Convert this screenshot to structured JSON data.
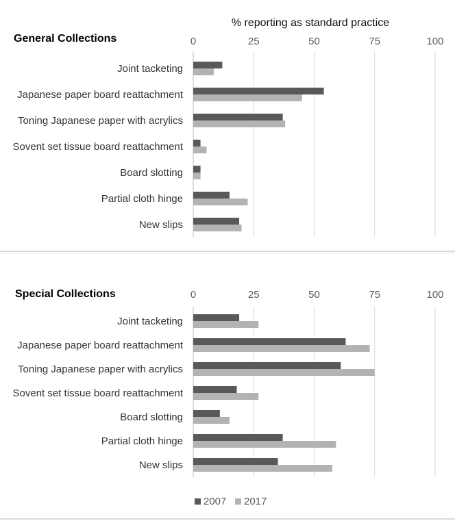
{
  "chart_data": [
    {
      "type": "bar",
      "orientation": "horizontal",
      "title": "General Collections",
      "xlabel": "% reporting as standard practice",
      "xlim": [
        0,
        100
      ],
      "xticks": [
        0,
        25,
        50,
        75,
        100
      ],
      "grid": true,
      "categories": [
        "Joint tacketing",
        "Japanese paper board reattachment",
        "Toning Japanese paper with acrylics",
        "Sovent set tissue board reattachment",
        "Board slotting",
        "Partial cloth hinge",
        "New slips"
      ],
      "series": [
        {
          "name": "2007",
          "color": "#595959",
          "values": [
            12,
            54,
            37,
            3,
            3,
            15,
            19
          ]
        },
        {
          "name": "2017",
          "color": "#b3b3b3",
          "values": [
            8.5,
            45,
            38,
            5.5,
            3,
            22.5,
            20
          ]
        }
      ]
    },
    {
      "type": "bar",
      "orientation": "horizontal",
      "title": "Special Collections",
      "xlabel": "",
      "xlim": [
        0,
        100
      ],
      "xticks": [
        0,
        25,
        50,
        75,
        100
      ],
      "grid": true,
      "legend": "bottom",
      "categories": [
        "Joint tacketing",
        "Japanese paper board reattachment",
        "Toning Japanese paper with acrylics",
        "Sovent set tissue board reattachment",
        "Board slotting",
        "Partial cloth hinge",
        "New slips"
      ],
      "series": [
        {
          "name": "2007",
          "color": "#595959",
          "values": [
            19,
            63,
            61,
            18,
            11,
            37,
            35
          ]
        },
        {
          "name": "2017",
          "color": "#b3b3b3",
          "values": [
            27,
            73,
            75,
            27,
            15,
            59,
            57.5
          ]
        }
      ]
    }
  ],
  "legend": [
    {
      "label": "2007",
      "color": "#595959"
    },
    {
      "label": "2017",
      "color": "#b3b3b3"
    }
  ]
}
